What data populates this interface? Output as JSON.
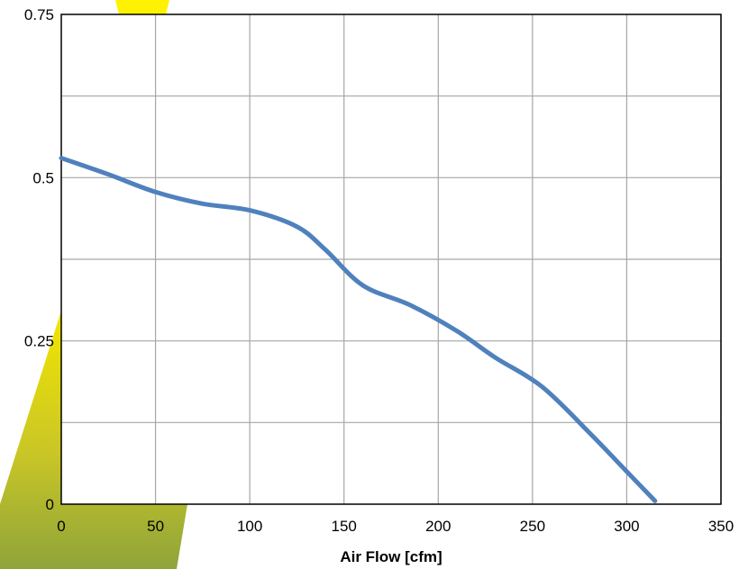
{
  "chart_data": {
    "type": "line",
    "title": "",
    "xlabel": "Air Flow [cfm]",
    "ylabel": "",
    "xlim": [
      0,
      350
    ],
    "ylim": [
      0,
      0.75
    ],
    "x_ticks": [
      0,
      50,
      100,
      150,
      200,
      250,
      300,
      350
    ],
    "x_tick_labels": [
      "0",
      "50",
      "100",
      "150",
      "200",
      "250",
      "300",
      "350"
    ],
    "y_ticks": [
      0,
      0.25,
      0.5,
      0.75
    ],
    "y_tick_labels": [
      "0",
      "0.25",
      "0.5",
      "0.75"
    ],
    "grid": true,
    "legend": "none",
    "series": [
      {
        "color": "#4f81bd",
        "x": [
          0,
          25,
          50,
          75,
          100,
          125,
          140,
          160,
          185,
          210,
          230,
          255,
          280,
          300,
          315
        ],
        "y": [
          0.53,
          0.505,
          0.478,
          0.46,
          0.45,
          0.425,
          0.39,
          0.335,
          0.305,
          0.265,
          0.225,
          0.18,
          0.11,
          0.05,
          0.005
        ]
      }
    ]
  },
  "colors": {
    "line": "#4f81bd",
    "grid": "#a6a6a6",
    "axis": "#000000",
    "yellow_accent": "#ffee00",
    "olive_accent": "#9aab2c"
  }
}
